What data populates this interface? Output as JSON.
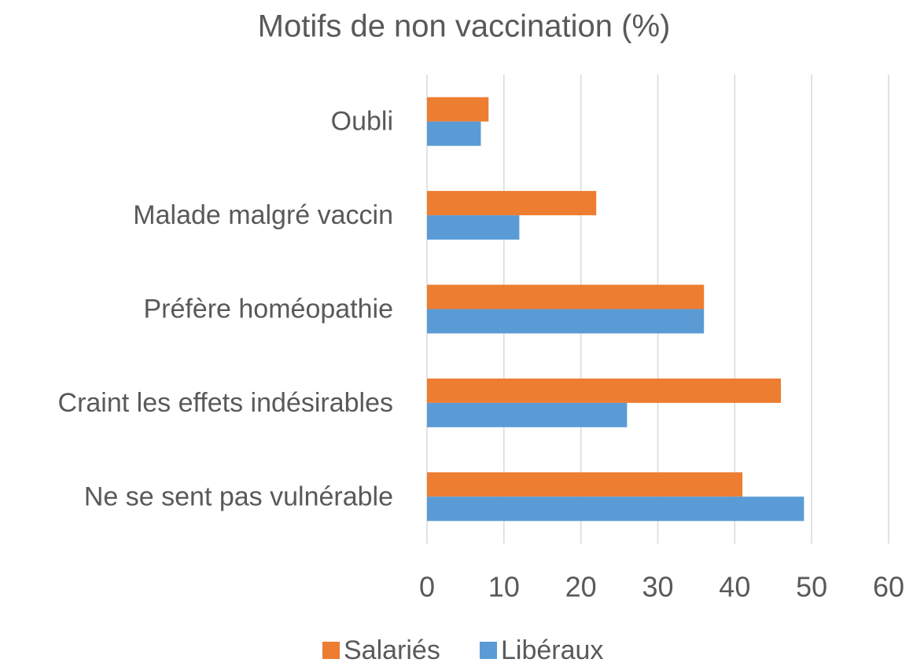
{
  "chart_data": {
    "type": "bar",
    "orientation": "horizontal",
    "title": "Motifs de non vaccination (%)",
    "categories": [
      "Oubli",
      "Malade malgré vaccin",
      "Préfère homéopathie",
      "Craint les effets indésirables",
      "Ne se sent pas vulnérable"
    ],
    "series": [
      {
        "name": "Salariés",
        "color": "#ed7d31",
        "values": [
          8,
          22,
          36,
          46,
          41
        ]
      },
      {
        "name": "Libéraux",
        "color": "#5b9bd5",
        "values": [
          7,
          12,
          36,
          26,
          49
        ]
      }
    ],
    "xlim": [
      0,
      60
    ],
    "xticks": [
      0,
      10,
      20,
      30,
      40,
      50,
      60
    ],
    "grid": true,
    "legend": "bottom"
  }
}
